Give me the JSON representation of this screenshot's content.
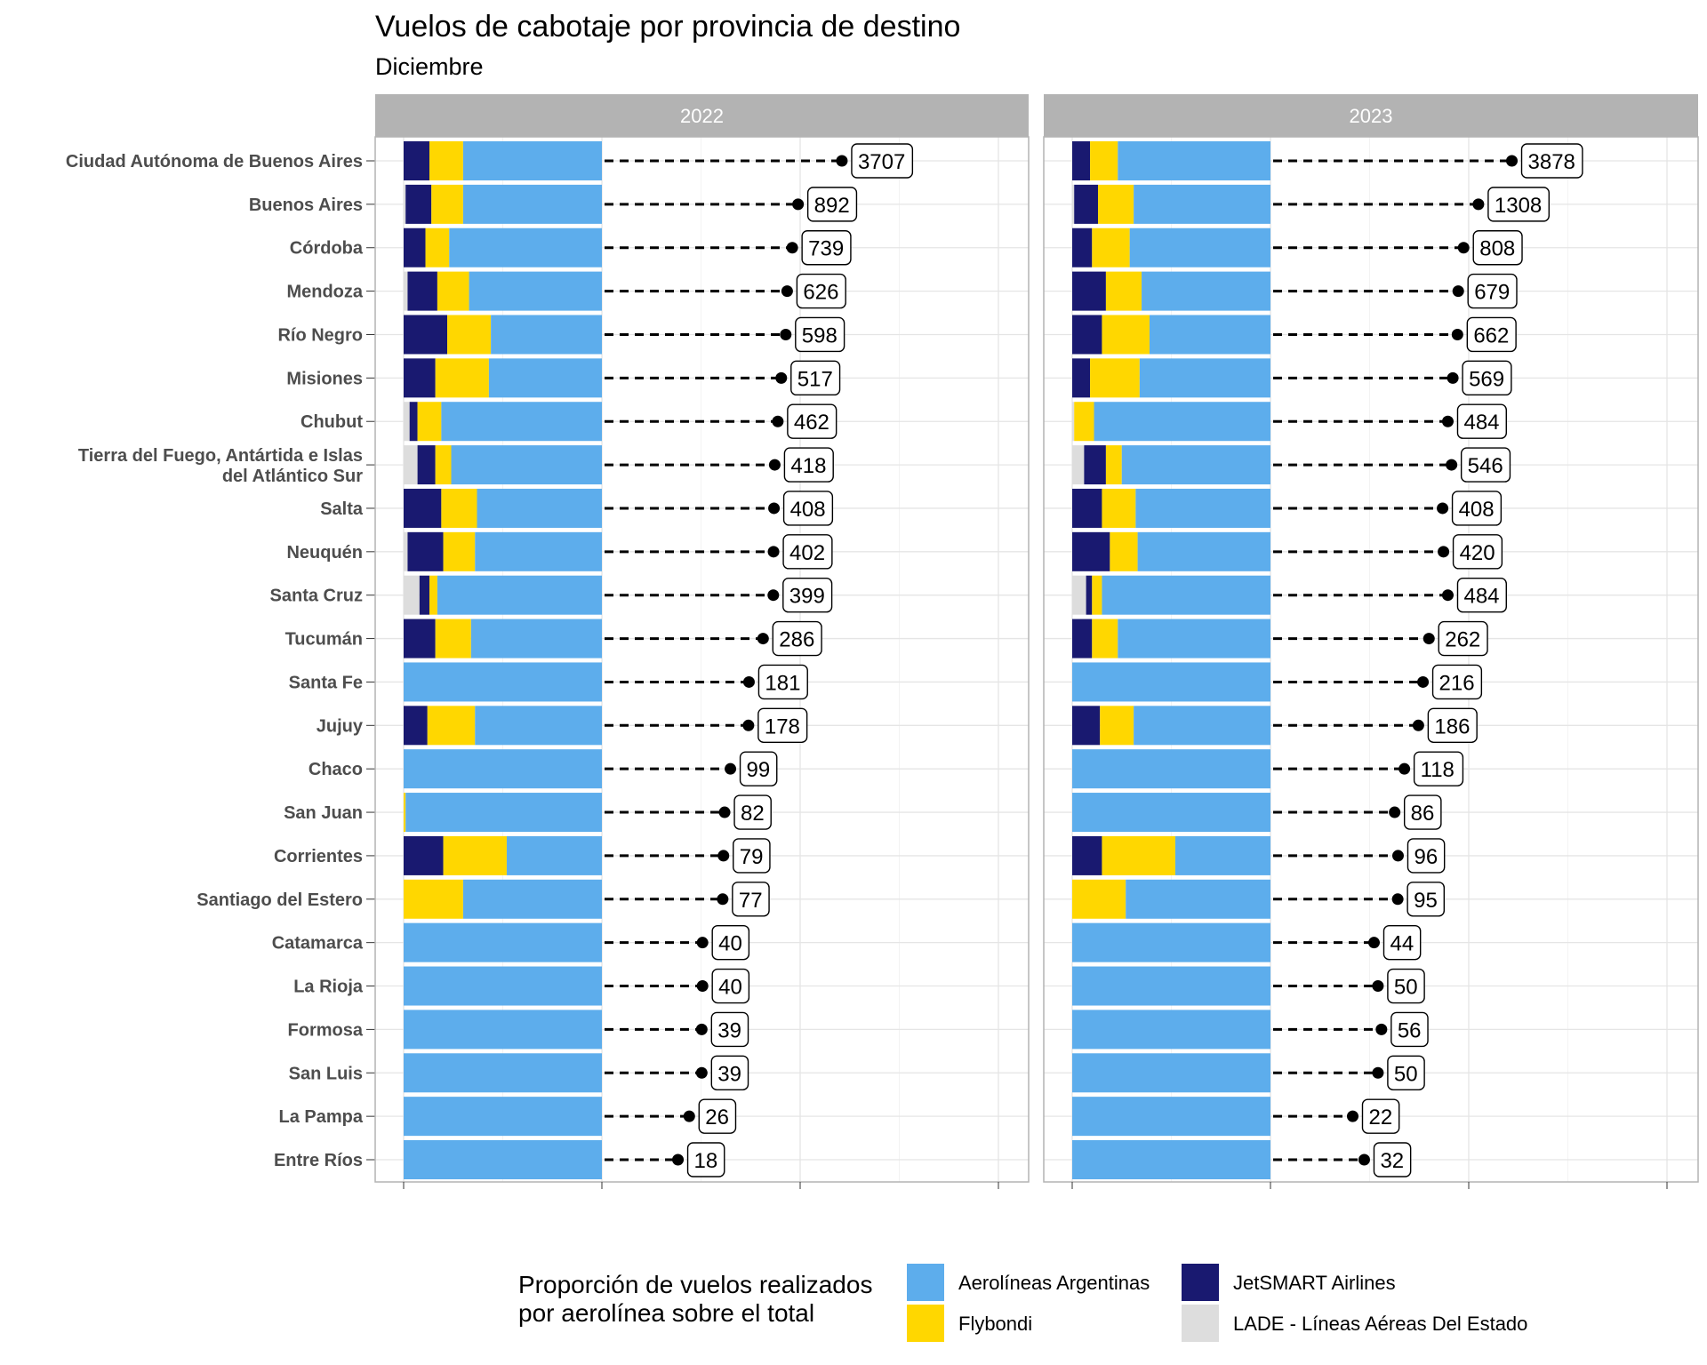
{
  "chart_data": {
    "type": "bar",
    "title": "Vuelos de cabotaje por provincia de destino",
    "subtitle": "Diciembre",
    "categories": [
      "Ciudad Autónoma de Buenos Aires",
      "Buenos Aires",
      "Córdoba",
      "Mendoza",
      "Río Negro",
      "Misiones",
      "Chubut",
      "Tierra del Fuego, Antártida e Islas del Atlántico Sur",
      "Salta",
      "Neuquén",
      "Santa Cruz",
      "Tucumán",
      "Santa Fe",
      "Jujuy",
      "Chaco",
      "San Juan",
      "Corrientes",
      "Santiago del Estero",
      "Catamarca",
      "La Rioja",
      "Formosa",
      "San Luis",
      "La Pampa",
      "Entre Ríos"
    ],
    "category_lines": [
      [
        "Ciudad Autónoma de Buenos Aires"
      ],
      [
        "Buenos Aires"
      ],
      [
        "Córdoba"
      ],
      [
        "Mendoza"
      ],
      [
        "Río Negro"
      ],
      [
        "Misiones"
      ],
      [
        "Chubut"
      ],
      [
        "Tierra del Fuego, Antártida e Islas",
        "del Atlántico Sur"
      ],
      [
        "Salta"
      ],
      [
        "Neuquén"
      ],
      [
        "Santa Cruz"
      ],
      [
        "Tucumán"
      ],
      [
        "Santa Fe"
      ],
      [
        "Jujuy"
      ],
      [
        "Chaco"
      ],
      [
        "San Juan"
      ],
      [
        "Corrientes"
      ],
      [
        "Santiago del Estero"
      ],
      [
        "Catamarca"
      ],
      [
        "La Rioja"
      ],
      [
        "Formosa"
      ],
      [
        "San Luis"
      ],
      [
        "La Pampa"
      ],
      [
        "Entre Ríos"
      ]
    ],
    "legend": {
      "title_lines": [
        "Proporción de vuelos realizados",
        "por aerolínea sobre el total"
      ],
      "position": "bottom"
    },
    "series": [
      {
        "name": "Aerolíneas Argentinas",
        "color": "#5DADEC"
      },
      {
        "name": "Flybondi",
        "color": "#FFD700"
      },
      {
        "name": "JetSMART Airlines",
        "color": "#191970"
      },
      {
        "name": "LADE - Líneas Aéreas Del Estado",
        "color": "#DDDDDD"
      }
    ],
    "panels": [
      {
        "label": "2022",
        "totals": [
          3707,
          892,
          739,
          626,
          598,
          517,
          462,
          418,
          408,
          402,
          399,
          286,
          181,
          178,
          99,
          82,
          79,
          77,
          40,
          40,
          39,
          39,
          26,
          18
        ],
        "shares": [
          {
            "LADE": 0.0,
            "JetSMART": 0.13,
            "Flybondi": 0.17,
            "Aerolíneas": 0.7
          },
          {
            "LADE": 0.01,
            "JetSMART": 0.13,
            "Flybondi": 0.16,
            "Aerolíneas": 0.7
          },
          {
            "LADE": 0.0,
            "JetSMART": 0.11,
            "Flybondi": 0.12,
            "Aerolíneas": 0.77
          },
          {
            "LADE": 0.02,
            "JetSMART": 0.15,
            "Flybondi": 0.16,
            "Aerolíneas": 0.67
          },
          {
            "LADE": 0.0,
            "JetSMART": 0.22,
            "Flybondi": 0.22,
            "Aerolíneas": 0.56
          },
          {
            "LADE": 0.0,
            "JetSMART": 0.16,
            "Flybondi": 0.27,
            "Aerolíneas": 0.57
          },
          {
            "LADE": 0.03,
            "JetSMART": 0.04,
            "Flybondi": 0.12,
            "Aerolíneas": 0.81
          },
          {
            "LADE": 0.07,
            "JetSMART": 0.09,
            "Flybondi": 0.08,
            "Aerolíneas": 0.76
          },
          {
            "LADE": 0.0,
            "JetSMART": 0.19,
            "Flybondi": 0.18,
            "Aerolíneas": 0.63
          },
          {
            "LADE": 0.02,
            "JetSMART": 0.18,
            "Flybondi": 0.16,
            "Aerolíneas": 0.64
          },
          {
            "LADE": 0.08,
            "JetSMART": 0.05,
            "Flybondi": 0.04,
            "Aerolíneas": 0.83
          },
          {
            "LADE": 0.0,
            "JetSMART": 0.16,
            "Flybondi": 0.18,
            "Aerolíneas": 0.66
          },
          {
            "LADE": 0.0,
            "JetSMART": 0.0,
            "Flybondi": 0.0,
            "Aerolíneas": 1.0
          },
          {
            "LADE": 0.0,
            "JetSMART": 0.12,
            "Flybondi": 0.24,
            "Aerolíneas": 0.64
          },
          {
            "LADE": 0.0,
            "JetSMART": 0.0,
            "Flybondi": 0.0,
            "Aerolíneas": 1.0
          },
          {
            "LADE": 0.0,
            "JetSMART": 0.0,
            "Flybondi": 0.01,
            "Aerolíneas": 0.99
          },
          {
            "LADE": 0.0,
            "JetSMART": 0.2,
            "Flybondi": 0.32,
            "Aerolíneas": 0.48
          },
          {
            "LADE": 0.0,
            "JetSMART": 0.0,
            "Flybondi": 0.3,
            "Aerolíneas": 0.7
          },
          {
            "LADE": 0.0,
            "JetSMART": 0.0,
            "Flybondi": 0.0,
            "Aerolíneas": 1.0
          },
          {
            "LADE": 0.0,
            "JetSMART": 0.0,
            "Flybondi": 0.0,
            "Aerolíneas": 1.0
          },
          {
            "LADE": 0.0,
            "JetSMART": 0.0,
            "Flybondi": 0.0,
            "Aerolíneas": 1.0
          },
          {
            "LADE": 0.0,
            "JetSMART": 0.0,
            "Flybondi": 0.0,
            "Aerolíneas": 1.0
          },
          {
            "LADE": 0.0,
            "JetSMART": 0.0,
            "Flybondi": 0.0,
            "Aerolíneas": 1.0
          },
          {
            "LADE": 0.0,
            "JetSMART": 0.0,
            "Flybondi": 0.0,
            "Aerolíneas": 1.0
          }
        ]
      },
      {
        "label": "2023",
        "totals": [
          3878,
          1308,
          808,
          679,
          662,
          569,
          484,
          546,
          408,
          420,
          484,
          262,
          216,
          186,
          118,
          86,
          96,
          95,
          44,
          50,
          56,
          50,
          22,
          32
        ],
        "shares": [
          {
            "LADE": 0.0,
            "JetSMART": 0.09,
            "Flybondi": 0.14,
            "Aerolíneas": 0.77
          },
          {
            "LADE": 0.01,
            "JetSMART": 0.12,
            "Flybondi": 0.18,
            "Aerolíneas": 0.69
          },
          {
            "LADE": 0.0,
            "JetSMART": 0.1,
            "Flybondi": 0.19,
            "Aerolíneas": 0.71
          },
          {
            "LADE": 0.0,
            "JetSMART": 0.17,
            "Flybondi": 0.18,
            "Aerolíneas": 0.65
          },
          {
            "LADE": 0.0,
            "JetSMART": 0.15,
            "Flybondi": 0.24,
            "Aerolíneas": 0.61
          },
          {
            "LADE": 0.0,
            "JetSMART": 0.09,
            "Flybondi": 0.25,
            "Aerolíneas": 0.66
          },
          {
            "LADE": 0.01,
            "JetSMART": 0.0,
            "Flybondi": 0.1,
            "Aerolíneas": 0.89
          },
          {
            "LADE": 0.06,
            "JetSMART": 0.11,
            "Flybondi": 0.08,
            "Aerolíneas": 0.75
          },
          {
            "LADE": 0.0,
            "JetSMART": 0.15,
            "Flybondi": 0.17,
            "Aerolíneas": 0.68
          },
          {
            "LADE": 0.0,
            "JetSMART": 0.19,
            "Flybondi": 0.14,
            "Aerolíneas": 0.67
          },
          {
            "LADE": 0.07,
            "JetSMART": 0.03,
            "Flybondi": 0.05,
            "Aerolíneas": 0.85
          },
          {
            "LADE": 0.0,
            "JetSMART": 0.1,
            "Flybondi": 0.13,
            "Aerolíneas": 0.77
          },
          {
            "LADE": 0.0,
            "JetSMART": 0.0,
            "Flybondi": 0.0,
            "Aerolíneas": 1.0
          },
          {
            "LADE": 0.0,
            "JetSMART": 0.14,
            "Flybondi": 0.17,
            "Aerolíneas": 0.69
          },
          {
            "LADE": 0.0,
            "JetSMART": 0.0,
            "Flybondi": 0.0,
            "Aerolíneas": 1.0
          },
          {
            "LADE": 0.0,
            "JetSMART": 0.0,
            "Flybondi": 0.0,
            "Aerolíneas": 1.0
          },
          {
            "LADE": 0.0,
            "JetSMART": 0.15,
            "Flybondi": 0.37,
            "Aerolíneas": 0.48
          },
          {
            "LADE": 0.0,
            "JetSMART": 0.0,
            "Flybondi": 0.27,
            "Aerolíneas": 0.73
          },
          {
            "LADE": 0.0,
            "JetSMART": 0.0,
            "Flybondi": 0.0,
            "Aerolíneas": 1.0
          },
          {
            "LADE": 0.0,
            "JetSMART": 0.0,
            "Flybondi": 0.0,
            "Aerolíneas": 1.0
          },
          {
            "LADE": 0.0,
            "JetSMART": 0.0,
            "Flybondi": 0.0,
            "Aerolíneas": 1.0
          },
          {
            "LADE": 0.0,
            "JetSMART": 0.0,
            "Flybondi": 0.0,
            "Aerolíneas": 1.0
          },
          {
            "LADE": 0.0,
            "JetSMART": 0.0,
            "Flybondi": 0.0,
            "Aerolíneas": 1.0
          },
          {
            "LADE": 0.0,
            "JetSMART": 0.0,
            "Flybondi": 0.0,
            "Aerolíneas": 1.0
          }
        ]
      }
    ],
    "grid": true,
    "share_axis_range": [
      0,
      1
    ],
    "x_scale": "log",
    "total_axis_range": [
      10,
      10000
    ]
  }
}
